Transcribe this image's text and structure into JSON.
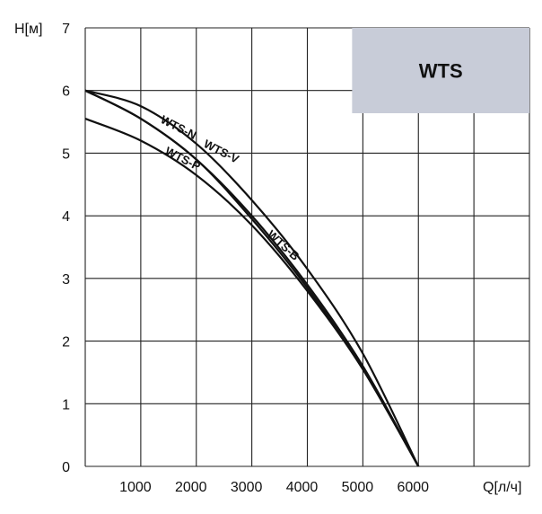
{
  "chart_data": {
    "type": "line",
    "title": "",
    "xlabel": "Q[л/ч]",
    "ylabel": "H[м]",
    "xlim": [
      0,
      8000
    ],
    "ylim": [
      0,
      7
    ],
    "grid": true,
    "x_ticks": [
      {
        "value": 1000,
        "label": "1000"
      },
      {
        "value": 2000,
        "label": "2000"
      },
      {
        "value": 3000,
        "label": "3000"
      },
      {
        "value": 4000,
        "label": "4000"
      },
      {
        "value": 5000,
        "label": "5000"
      },
      {
        "value": 6000,
        "label": "6000"
      }
    ],
    "y_ticks": [
      {
        "value": 0,
        "label": "0"
      },
      {
        "value": 1,
        "label": "1"
      },
      {
        "value": 2,
        "label": "2"
      },
      {
        "value": 3,
        "label": "3"
      },
      {
        "value": 4,
        "label": "4"
      },
      {
        "value": 5,
        "label": "5"
      },
      {
        "value": 6,
        "label": "6"
      },
      {
        "value": 7,
        "label": "7"
      }
    ],
    "badge": {
      "text": "WTS",
      "color": "#c8ccd8"
    },
    "series": [
      {
        "name": "WTS-V",
        "x": [
          0,
          1000,
          2000,
          3000,
          4000,
          5000,
          6000
        ],
        "y": [
          6.0,
          5.75,
          5.15,
          4.25,
          3.15,
          1.8,
          0.0
        ]
      },
      {
        "name": "WTS-N",
        "x": [
          0,
          1000,
          2000,
          3000,
          4000,
          5000,
          6000
        ],
        "y": [
          6.0,
          5.55,
          4.9,
          3.95,
          2.85,
          1.55,
          0.0
        ]
      },
      {
        "name": "WTS-B",
        "x": [
          0,
          1000,
          2000,
          3000,
          4000,
          5000,
          6000
        ],
        "y": [
          6.0,
          5.55,
          4.9,
          4.0,
          2.9,
          1.6,
          0.0
        ]
      },
      {
        "name": "WTS-P",
        "x": [
          0,
          1000,
          2000,
          3000,
          4000,
          5000,
          6000
        ],
        "y": [
          5.55,
          5.2,
          4.65,
          3.85,
          2.8,
          1.55,
          0.0
        ]
      }
    ]
  }
}
